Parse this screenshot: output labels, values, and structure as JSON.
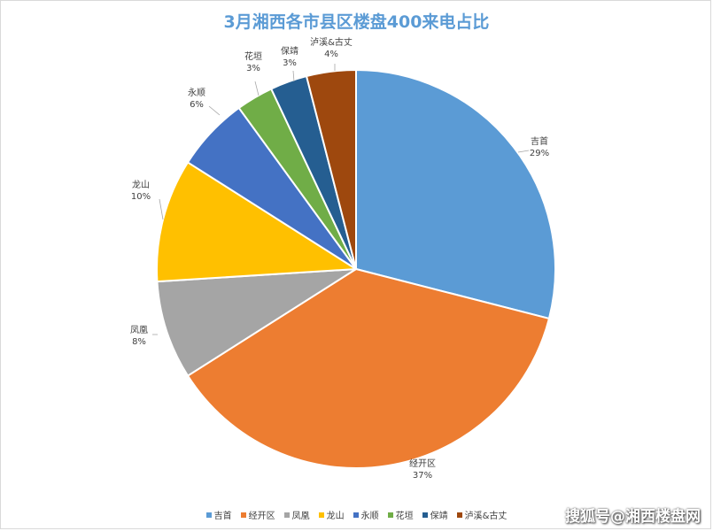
{
  "chart_data": {
    "type": "pie",
    "title": "3月湘西各市县区楼盘400来电占比",
    "slices": [
      {
        "name": "吉首",
        "value": 29,
        "label": "29%",
        "color": "#5b9bd5"
      },
      {
        "name": "经开区",
        "value": 37,
        "label": "37%",
        "color": "#ed7d31"
      },
      {
        "name": "凤凰",
        "value": 8,
        "label": "8%",
        "color": "#a5a5a5"
      },
      {
        "name": "龙山",
        "value": 10,
        "label": "10%",
        "color": "#ffc000"
      },
      {
        "name": "永顺",
        "value": 6,
        "label": "6%",
        "color": "#4472c4"
      },
      {
        "name": "花垣",
        "value": 3,
        "label": "3%",
        "color": "#70ad47"
      },
      {
        "name": "保靖",
        "value": 3,
        "label": "3%",
        "color": "#255e91"
      },
      {
        "name": "泸溪&古丈",
        "value": 4,
        "label": "4%",
        "color": "#9e480e"
      }
    ],
    "legend_position": "bottom"
  },
  "watermark": "搜狐号@湘西楼盘网"
}
